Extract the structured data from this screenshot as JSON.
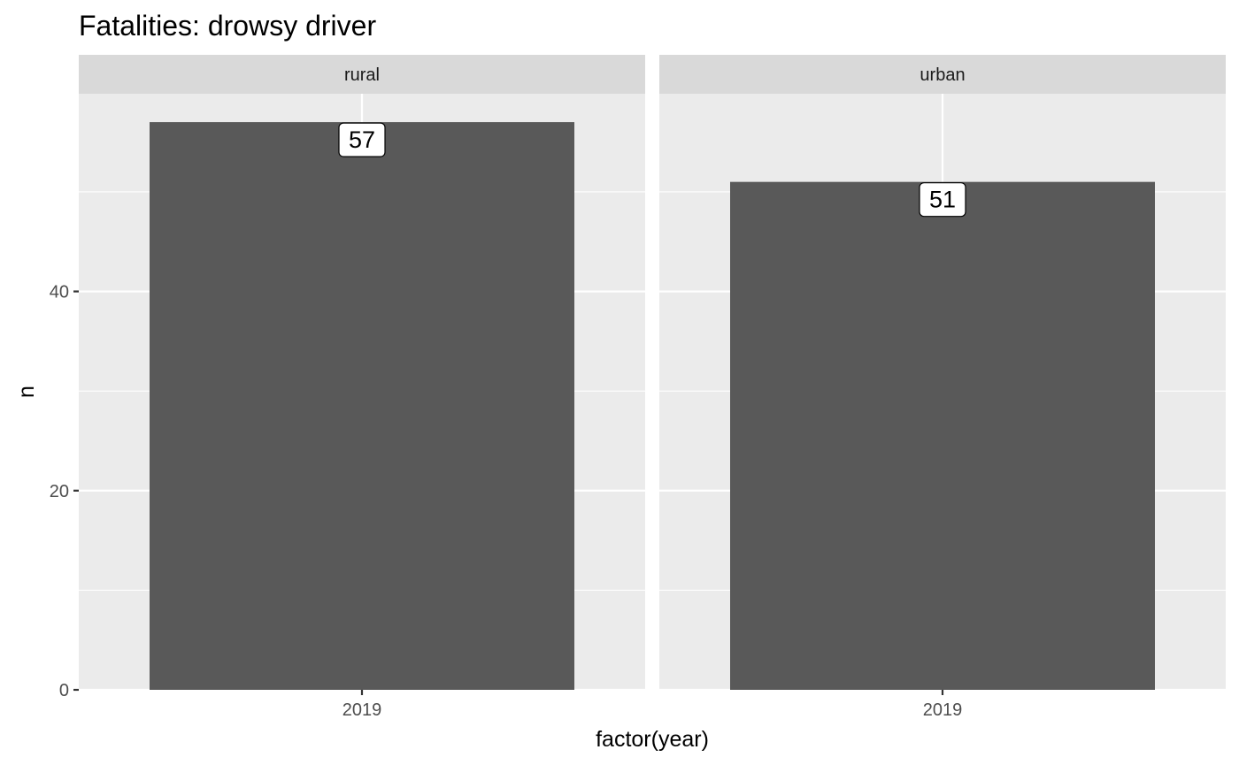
{
  "chart_data": {
    "type": "bar",
    "title": "Fatalities: drowsy driver",
    "xlabel": "factor(year)",
    "ylabel": "n",
    "ylim": [
      0,
      59.85
    ],
    "y_ticks": [
      0,
      20,
      40
    ],
    "grid": true,
    "facets": [
      {
        "name": "rural",
        "categories": [
          "2019"
        ],
        "values": [
          57
        ],
        "labels": [
          "57"
        ]
      },
      {
        "name": "urban",
        "categories": [
          "2019"
        ],
        "values": [
          51
        ],
        "labels": [
          "51"
        ]
      }
    ],
    "colors": {
      "bar": "#595959",
      "panel": "#ebebeb",
      "strip": "#d9d9d9",
      "grid": "#ffffff",
      "label_fill": "#ffffff"
    }
  }
}
